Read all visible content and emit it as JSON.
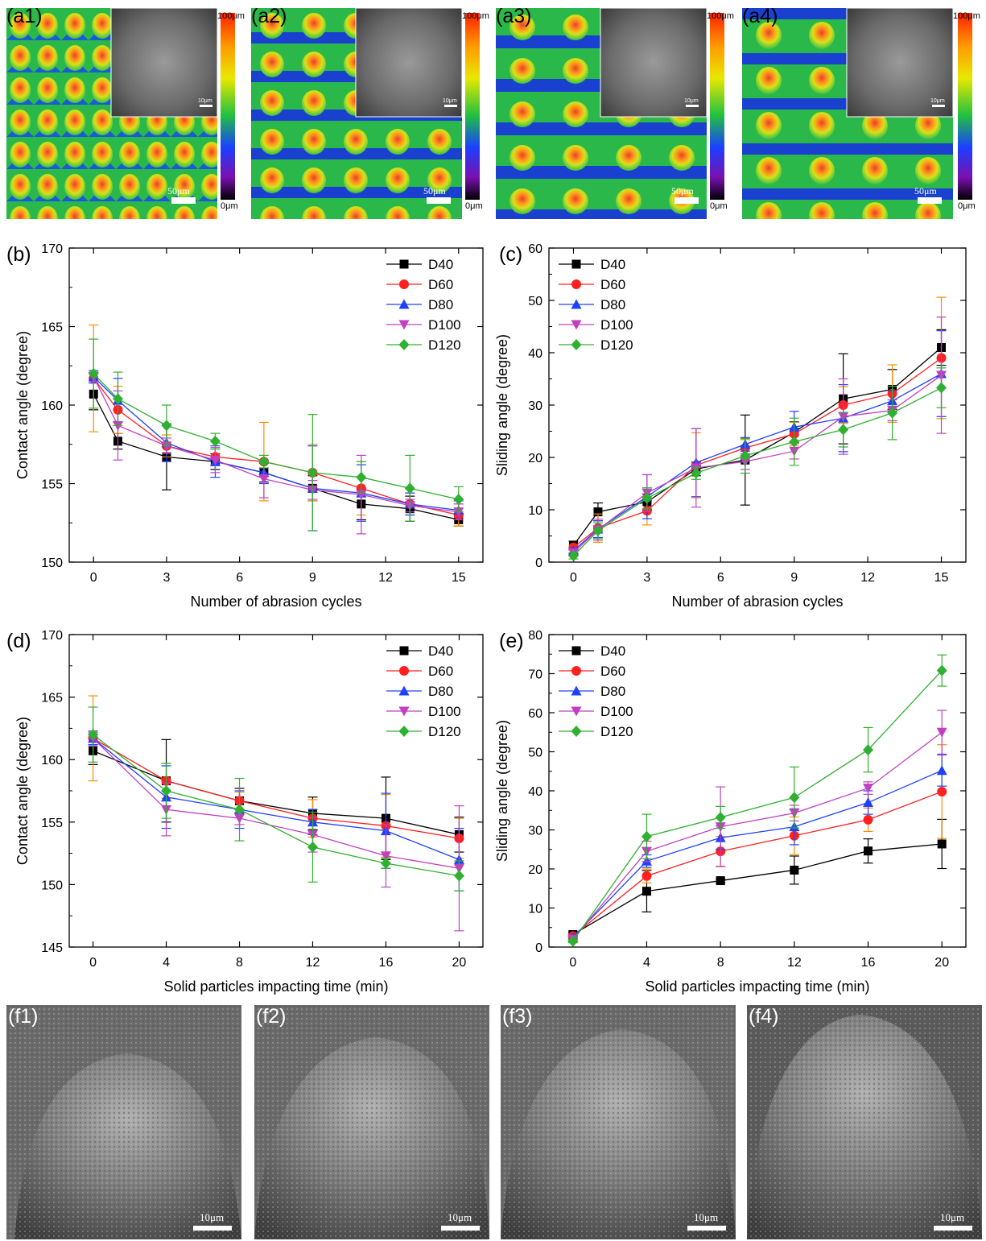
{
  "a_panels": [
    {
      "label": "(a1)",
      "bar_top": "100μm",
      "bar_bottom": "0μm",
      "scale": "50μm",
      "inset_scale": "10μm"
    },
    {
      "label": "(a2)",
      "bar_top": "100μm",
      "bar_bottom": "0μm",
      "scale": "50μm",
      "inset_scale": "10μm"
    },
    {
      "label": "(a3)",
      "bar_top": "100μm",
      "bar_bottom": "0μm",
      "scale": "50μm",
      "inset_scale": "10μm"
    },
    {
      "label": "(a4)",
      "bar_top": "100μm",
      "bar_bottom": "0μm",
      "scale": "50μm",
      "inset_scale": "10μm"
    }
  ],
  "f_panels": [
    {
      "label": "(f1)",
      "scale": "10μm"
    },
    {
      "label": "(f2)",
      "scale": "10μm"
    },
    {
      "label": "(f3)",
      "scale": "10μm"
    },
    {
      "label": "(f4)",
      "scale": "10μm"
    }
  ],
  "series_colors": {
    "D40": "#000000",
    "D60": "#ff2020",
    "D80": "#2040ff",
    "D100": "#c040c0",
    "D120": "#30b030"
  },
  "chart_data": [
    {
      "panel": "(b)",
      "type": "line",
      "xlabel": "Number of abrasion cycles",
      "ylabel": "Contact angle (degree)",
      "xlim": [
        -1,
        16
      ],
      "ylim": [
        150,
        170
      ],
      "xticks": [
        0,
        3,
        6,
        9,
        12,
        15
      ],
      "yticks": [
        150,
        155,
        160,
        165,
        170
      ],
      "legend_position": "top-right",
      "x": [
        0,
        1,
        3,
        5,
        7,
        9,
        11,
        13,
        15
      ],
      "series": [
        {
          "name": "D40",
          "marker": "square",
          "values": [
            160.7,
            157.7,
            156.7,
            156.4,
            155.7,
            154.7,
            153.7,
            153.4,
            152.7
          ],
          "errors": [
            1.0,
            0.5,
            2.1,
            0.5,
            0.6,
            0.8,
            1.0,
            0.8,
            0.4
          ]
        },
        {
          "name": "D60",
          "marker": "circle",
          "values": [
            161.7,
            159.7,
            157.4,
            156.7,
            156.4,
            155.7,
            154.7,
            153.7,
            153.0
          ],
          "errors": [
            3.4,
            1.5,
            0.7,
            0.5,
            2.5,
            1.8,
            1.7,
            0.7,
            0.7
          ]
        },
        {
          "name": "D80",
          "marker": "triangle-up",
          "values": [
            161.8,
            160.3,
            157.6,
            156.4,
            155.7,
            154.7,
            154.4,
            153.7,
            153.3
          ],
          "errors": [
            0.4,
            1.4,
            1.2,
            1.0,
            0.7,
            2.7,
            1.8,
            0.7,
            0.6
          ]
        },
        {
          "name": "D100",
          "marker": "triangle-down",
          "values": [
            161.8,
            158.7,
            157.4,
            156.5,
            155.3,
            154.6,
            154.3,
            153.6,
            153.2
          ],
          "errors": [
            0.3,
            2.2,
            0.5,
            0.8,
            1.2,
            0.6,
            2.5,
            0.4,
            0.5
          ]
        },
        {
          "name": "D120",
          "marker": "diamond",
          "values": [
            162.0,
            160.4,
            158.7,
            157.7,
            156.4,
            155.7,
            155.4,
            154.7,
            154.0
          ],
          "errors": [
            2.2,
            1.7,
            1.3,
            0.5,
            0.4,
            3.7,
            1.0,
            2.1,
            0.8
          ]
        }
      ]
    },
    {
      "panel": "(c)",
      "type": "line",
      "xlabel": "Number of abrasion cycles",
      "ylabel": "Sliding angle (degree)",
      "xlim": [
        -1,
        16
      ],
      "ylim": [
        0,
        60
      ],
      "xticks": [
        0,
        3,
        6,
        9,
        12,
        15
      ],
      "yticks": [
        0,
        10,
        20,
        30,
        40,
        50,
        60
      ],
      "legend_position": "top-left",
      "x": [
        0,
        1,
        3,
        5,
        7,
        9,
        11,
        13,
        15
      ],
      "series": [
        {
          "name": "D40",
          "marker": "square",
          "values": [
            3.2,
            9.6,
            11.5,
            17.8,
            19.5,
            24.8,
            31.2,
            33.0,
            41.0
          ],
          "errors": [
            0.8,
            1.7,
            1.5,
            1.3,
            8.6,
            2.0,
            8.6,
            3.8,
            3.4
          ]
        },
        {
          "name": "D60",
          "marker": "circle",
          "values": [
            2.8,
            6.5,
            9.8,
            18.5,
            21.8,
            24.5,
            30.0,
            32.2,
            39.0
          ],
          "errors": [
            0.5,
            2.7,
            2.7,
            6.2,
            1.6,
            2.2,
            3.5,
            5.5,
            11.6
          ]
        },
        {
          "name": "D80",
          "marker": "triangle-up",
          "values": [
            2.2,
            6.3,
            12.5,
            19.0,
            22.5,
            25.8,
            27.5,
            30.8,
            36.0
          ],
          "errors": [
            0.5,
            1.6,
            4.2,
            6.5,
            1.3,
            3.0,
            6.4,
            2.0,
            8.2
          ]
        },
        {
          "name": "D100",
          "marker": "triangle-down",
          "values": [
            1.8,
            6.2,
            13.2,
            18.0,
            19.2,
            21.2,
            27.8,
            29.0,
            35.7
          ],
          "errors": [
            0.5,
            2.0,
            3.5,
            7.5,
            1.5,
            1.5,
            7.2,
            2.0,
            11.1
          ]
        },
        {
          "name": "D120",
          "marker": "diamond",
          "values": [
            1.2,
            6.0,
            12.2,
            17.0,
            20.3,
            23.0,
            25.3,
            28.5,
            33.3
          ],
          "errors": [
            0.6,
            1.5,
            2.0,
            1.2,
            3.3,
            4.5,
            3.3,
            5.1,
            3.8
          ]
        }
      ]
    },
    {
      "panel": "(d)",
      "type": "line",
      "xlabel": "Solid particles impacting time (min)",
      "ylabel": "Contact angle (degree)",
      "xlim": [
        -1.3,
        21.3
      ],
      "ylim": [
        145,
        170
      ],
      "xticks": [
        0,
        4,
        8,
        12,
        16,
        20
      ],
      "yticks": [
        145,
        150,
        155,
        160,
        165,
        170
      ],
      "legend_position": "top-right",
      "x": [
        0,
        4,
        8,
        12,
        16,
        20
      ],
      "series": [
        {
          "name": "D40",
          "marker": "square",
          "values": [
            160.7,
            158.3,
            156.7,
            155.7,
            155.3,
            154.0
          ],
          "errors": [
            1.1,
            3.3,
            1.0,
            1.3,
            3.3,
            1.4
          ]
        },
        {
          "name": "D60",
          "marker": "circle",
          "values": [
            161.7,
            158.3,
            156.7,
            155.3,
            154.7,
            153.7
          ],
          "errors": [
            3.4,
            1.4,
            0.7,
            1.5,
            2.5,
            1.6
          ]
        },
        {
          "name": "D80",
          "marker": "triangle-up",
          "values": [
            161.7,
            157.0,
            156.0,
            155.0,
            154.3,
            152.0
          ],
          "errors": [
            0.5,
            2.5,
            1.5,
            1.0,
            3.0,
            2.5
          ]
        },
        {
          "name": "D100",
          "marker": "triangle-down",
          "values": [
            161.7,
            156.0,
            155.3,
            154.0,
            152.3,
            151.3
          ],
          "errors": [
            0.6,
            2.1,
            0.5,
            1.4,
            2.5,
            5.0
          ]
        },
        {
          "name": "D120",
          "marker": "diamond",
          "values": [
            162.0,
            157.5,
            156.0,
            153.0,
            151.7,
            150.7
          ],
          "errors": [
            2.2,
            2.2,
            2.5,
            2.8,
            0.4,
            1.2
          ]
        }
      ]
    },
    {
      "panel": "(e)",
      "type": "line",
      "xlabel": "Solid particles impacting time (min)",
      "ylabel": "Sliding angle (degree)",
      "xlim": [
        -1.3,
        21.3
      ],
      "ylim": [
        0,
        80
      ],
      "xticks": [
        0,
        4,
        8,
        12,
        16,
        20
      ],
      "yticks": [
        0,
        10,
        20,
        30,
        40,
        50,
        60,
        70,
        80
      ],
      "legend_position": "top-left",
      "x": [
        0,
        4,
        8,
        12,
        16,
        20
      ],
      "series": [
        {
          "name": "D40",
          "marker": "square",
          "values": [
            3.2,
            14.3,
            17.0,
            19.7,
            24.6,
            26.4
          ],
          "errors": [
            0.6,
            5.3,
            0.5,
            3.6,
            3.1,
            6.3
          ]
        },
        {
          "name": "D60",
          "marker": "circle",
          "values": [
            2.8,
            18.2,
            24.5,
            28.5,
            32.6,
            39.8
          ],
          "errors": [
            0.5,
            1.8,
            3.8,
            4.8,
            3.0,
            12.0
          ]
        },
        {
          "name": "D80",
          "marker": "triangle-up",
          "values": [
            2.5,
            22.0,
            28.0,
            30.8,
            37.0,
            45.2
          ],
          "errors": [
            0.5,
            1.6,
            3.0,
            4.6,
            3.0,
            4.0
          ]
        },
        {
          "name": "D100",
          "marker": "triangle-down",
          "values": [
            2.0,
            24.5,
            30.8,
            34.3,
            40.7,
            55.0
          ],
          "errors": [
            0.5,
            2.6,
            10.2,
            2.0,
            1.6,
            5.6
          ]
        },
        {
          "name": "D120",
          "marker": "diamond",
          "values": [
            1.5,
            28.3,
            33.2,
            38.3,
            50.5,
            70.8
          ],
          "errors": [
            0.4,
            5.7,
            2.8,
            7.8,
            5.7,
            4.0
          ]
        }
      ]
    }
  ]
}
